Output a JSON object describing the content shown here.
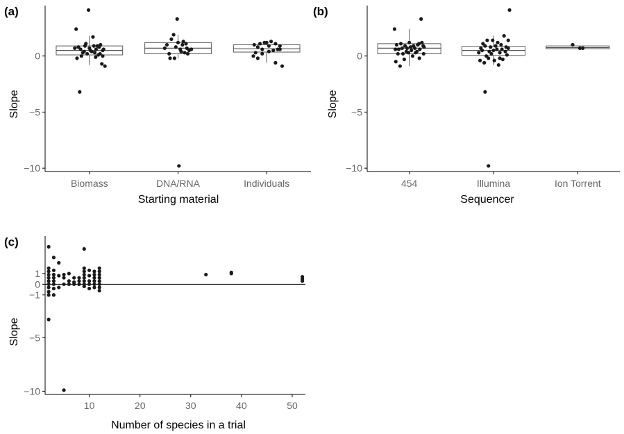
{
  "chart_data": [
    {
      "panel_label": "(a)",
      "type": "box-strip",
      "xlabel": "Starting material",
      "ylabel": "Slope",
      "ylim": [
        -10.3,
        4.5
      ],
      "yticks": [
        0,
        -5,
        -10
      ],
      "ytick_labels": [
        "0",
        "−5",
        "−10"
      ],
      "categories": [
        "Biomass",
        "DNA/RNA",
        "Individuals"
      ],
      "boxes": [
        {
          "q1": 0.1,
          "median": 0.5,
          "q3": 0.9,
          "whisker_low": -0.8,
          "whisker_high": 1.8
        },
        {
          "q1": 0.2,
          "median": 0.7,
          "q3": 1.2,
          "whisker_low": -0.2,
          "whisker_high": 1.9
        },
        {
          "q1": 0.35,
          "median": 0.65,
          "q3": 1.0,
          "whisker_low": -0.6,
          "whisker_high": 1.3
        }
      ],
      "points": [
        [
          [
            -0.3,
            2.4
          ],
          [
            -0.25,
            0.8
          ],
          [
            -0.2,
            0.6
          ],
          [
            -0.15,
            0.3
          ],
          [
            -0.1,
            0.9
          ],
          [
            -0.05,
            0.2
          ],
          [
            0.0,
            0.7
          ],
          [
            0.05,
            0.4
          ],
          [
            0.1,
            0.9
          ],
          [
            0.15,
            0.6
          ],
          [
            0.2,
            0.1
          ],
          [
            0.25,
            1.0
          ],
          [
            0.3,
            0.5
          ],
          [
            -0.28,
            -0.2
          ],
          [
            -0.18,
            0.0
          ],
          [
            -0.08,
            1.1
          ],
          [
            0.02,
            0.5
          ],
          [
            0.12,
            0.3
          ],
          [
            0.22,
            0.8
          ],
          [
            0.32,
            0.6
          ],
          [
            -0.02,
            4.1
          ],
          [
            -0.22,
            -3.2
          ],
          [
            0.28,
            -0.7
          ],
          [
            0.35,
            -0.9
          ],
          [
            0.08,
            1.7
          ],
          [
            0.18,
            0.9
          ],
          [
            -0.12,
            0.4
          ],
          [
            0.24,
            0.2
          ],
          [
            -0.33,
            0.7
          ],
          [
            0.14,
            -0.1
          ],
          [
            0.3,
            0.0
          ]
        ],
        [
          [
            -0.25,
            1.0
          ],
          [
            -0.15,
            1.5
          ],
          [
            -0.1,
            1.9
          ],
          [
            -0.05,
            0.8
          ],
          [
            0.0,
            1.2
          ],
          [
            0.05,
            0.6
          ],
          [
            0.1,
            1.0
          ],
          [
            0.15,
            0.3
          ],
          [
            0.2,
            0.7
          ],
          [
            0.25,
            0.5
          ],
          [
            -0.2,
            0.2
          ],
          [
            -0.3,
            0.7
          ],
          [
            -0.02,
            3.3
          ],
          [
            0.12,
            1.3
          ],
          [
            0.22,
            0.2
          ],
          [
            0.3,
            0.6
          ],
          [
            -0.18,
            -0.2
          ],
          [
            -0.08,
            -0.2
          ],
          [
            0.18,
            1.1
          ],
          [
            0.07,
            0.4
          ],
          [
            0.02,
            -9.8
          ]
        ],
        [
          [
            -0.3,
            0.0
          ],
          [
            -0.25,
            0.3
          ],
          [
            -0.2,
            0.8
          ],
          [
            -0.15,
            1.1
          ],
          [
            -0.1,
            0.6
          ],
          [
            -0.05,
            1.2
          ],
          [
            0.0,
            1.2
          ],
          [
            0.05,
            0.9
          ],
          [
            0.1,
            1.3
          ],
          [
            0.15,
            0.5
          ],
          [
            0.2,
            1.1
          ],
          [
            0.25,
            0.6
          ],
          [
            0.3,
            0.9
          ],
          [
            0.35,
            -0.9
          ],
          [
            0.2,
            -0.6
          ],
          [
            -0.28,
            1.0
          ],
          [
            -0.1,
            0.2
          ],
          [
            0.05,
            0.4
          ],
          [
            0.3,
            0.6
          ],
          [
            -0.2,
            -0.2
          ]
        ]
      ]
    },
    {
      "panel_label": "(b)",
      "type": "box-strip",
      "xlabel": "Sequencer",
      "ylabel": "Slope",
      "ylim": [
        -10.3,
        4.5
      ],
      "yticks": [
        0,
        -5,
        -10
      ],
      "ytick_labels": [
        "0",
        "−5",
        "−10"
      ],
      "categories": [
        "454",
        "Illumina",
        "Ion Torrent"
      ],
      "boxes": [
        {
          "q1": 0.2,
          "median": 0.7,
          "q3": 1.1,
          "whisker_low": -0.9,
          "whisker_high": 2.4
        },
        {
          "q1": 0.05,
          "median": 0.5,
          "q3": 0.85,
          "whisker_low": -0.8,
          "whisker_high": 1.8
        },
        {
          "q1": 0.65,
          "median": 0.75,
          "q3": 0.9,
          "whisker_low": 0.65,
          "whisker_high": 0.9
        }
      ],
      "points": [
        [
          [
            -0.35,
            2.4
          ],
          [
            -0.3,
            1.0
          ],
          [
            -0.25,
            0.6
          ],
          [
            -0.2,
            1.1
          ],
          [
            -0.15,
            0.2
          ],
          [
            -0.1,
            0.9
          ],
          [
            -0.05,
            0.7
          ],
          [
            0.0,
            1.2
          ],
          [
            0.05,
            0.5
          ],
          [
            0.1,
            0.9
          ],
          [
            0.15,
            0.3
          ],
          [
            0.2,
            1.0
          ],
          [
            0.25,
            0.6
          ],
          [
            0.3,
            1.2
          ],
          [
            0.35,
            0.8
          ],
          [
            -0.32,
            -0.5
          ],
          [
            -0.22,
            -0.9
          ],
          [
            -0.12,
            -0.3
          ],
          [
            -0.02,
            0.3
          ],
          [
            0.08,
            0.0
          ],
          [
            0.18,
            0.4
          ],
          [
            0.28,
            3.3
          ],
          [
            0.33,
            0.9
          ],
          [
            -0.27,
            0.2
          ],
          [
            -0.17,
            0.7
          ],
          [
            -0.07,
            0.4
          ],
          [
            0.13,
            0.7
          ],
          [
            0.23,
            1.1
          ],
          [
            -0.33,
            0.6
          ],
          [
            0.03,
            0.8
          ],
          [
            0.24,
            -0.2
          ],
          [
            0.34,
            0.2
          ]
        ],
        [
          [
            -0.35,
            0.3
          ],
          [
            -0.3,
            0.7
          ],
          [
            -0.25,
            1.1
          ],
          [
            -0.2,
            0.9
          ],
          [
            -0.15,
            1.4
          ],
          [
            -0.1,
            0.4
          ],
          [
            -0.05,
            0.2
          ],
          [
            0.0,
            0.5
          ],
          [
            0.05,
            0.9
          ],
          [
            0.1,
            1.2
          ],
          [
            0.15,
            0.3
          ],
          [
            0.2,
            0.6
          ],
          [
            0.25,
            1.8
          ],
          [
            0.3,
            0.8
          ],
          [
            0.35,
            1.4
          ],
          [
            -0.32,
            -0.4
          ],
          [
            -0.22,
            -0.6
          ],
          [
            -0.12,
            -0.2
          ],
          [
            0.02,
            -0.4
          ],
          [
            0.12,
            -0.8
          ],
          [
            0.22,
            -0.3
          ],
          [
            0.32,
            0.1
          ],
          [
            -0.27,
            0.5
          ],
          [
            -0.17,
            0.0
          ],
          [
            -0.07,
            0.8
          ],
          [
            0.08,
            0.6
          ],
          [
            0.18,
            1.0
          ],
          [
            0.28,
            0.4
          ],
          [
            0.38,
            4.1
          ],
          [
            -0.2,
            -3.2
          ],
          [
            -0.12,
            -9.8
          ],
          [
            0.35,
            0.7
          ],
          [
            -0.02,
            1.4
          ],
          [
            0.15,
            -0.2
          ]
        ],
        [
          [
            -0.12,
            1.0
          ],
          [
            0.05,
            0.7
          ],
          [
            0.12,
            0.7
          ]
        ]
      ]
    },
    {
      "panel_label": "(c)",
      "type": "scatter",
      "xlabel": "Number of species in a trial",
      "ylabel": "Slope",
      "xlim": [
        1.3,
        52.6
      ],
      "ylim": [
        -10.3,
        4.5
      ],
      "xticks": [
        10,
        20,
        30,
        40,
        50
      ],
      "xtick_labels": [
        "10",
        "20",
        "30",
        "40",
        "50"
      ],
      "yticks": [
        1,
        0,
        -1,
        -5,
        -10
      ],
      "ytick_labels": [
        "1",
        "0",
        "−1",
        "−5",
        "−10"
      ],
      "hline": 0,
      "points": [
        [
          2,
          3.5
        ],
        [
          2,
          1.5
        ],
        [
          2,
          1.2
        ],
        [
          2,
          0.9
        ],
        [
          2,
          0.6
        ],
        [
          2,
          0.3
        ],
        [
          2,
          0.0
        ],
        [
          2,
          -0.3
        ],
        [
          2,
          -0.7
        ],
        [
          2,
          -3.3
        ],
        [
          2,
          -1.0
        ],
        [
          3,
          2.5
        ],
        [
          3,
          1.3
        ],
        [
          3,
          0.9
        ],
        [
          3,
          0.6
        ],
        [
          3,
          0.3
        ],
        [
          3,
          0.0
        ],
        [
          3,
          -0.4
        ],
        [
          3,
          -1.0
        ],
        [
          4,
          2.0
        ],
        [
          4,
          0.8
        ],
        [
          4,
          -0.3
        ],
        [
          5,
          0.9
        ],
        [
          5,
          0.6
        ],
        [
          5,
          0.0
        ],
        [
          5,
          -9.9
        ],
        [
          6,
          1.0
        ],
        [
          6,
          0.3
        ],
        [
          6,
          0.0
        ],
        [
          7,
          0.6
        ],
        [
          7,
          0.2
        ],
        [
          7,
          0.0
        ],
        [
          8,
          0.6
        ],
        [
          8,
          0.3
        ],
        [
          8,
          0.0
        ],
        [
          9,
          3.3
        ],
        [
          9,
          1.5
        ],
        [
          9,
          1.2
        ],
        [
          9,
          0.9
        ],
        [
          9,
          0.6
        ],
        [
          9,
          0.3
        ],
        [
          9,
          0.0
        ],
        [
          9,
          -0.2
        ],
        [
          10,
          1.3
        ],
        [
          10,
          0.8
        ],
        [
          10,
          0.3
        ],
        [
          10,
          0.0
        ],
        [
          10,
          -0.4
        ],
        [
          11,
          1.2
        ],
        [
          11,
          0.9
        ],
        [
          11,
          0.6
        ],
        [
          11,
          0.3
        ],
        [
          11,
          0.0
        ],
        [
          11,
          -0.3
        ],
        [
          12,
          1.5
        ],
        [
          12,
          1.2
        ],
        [
          12,
          0.9
        ],
        [
          12,
          0.6
        ],
        [
          12,
          0.3
        ],
        [
          12,
          0.0
        ],
        [
          12,
          -0.3
        ],
        [
          12,
          -0.6
        ],
        [
          33,
          0.9
        ],
        [
          38,
          1.1
        ],
        [
          38,
          1.0
        ],
        [
          52,
          0.7
        ],
        [
          52,
          0.5
        ],
        [
          52,
          0.3
        ]
      ]
    }
  ]
}
